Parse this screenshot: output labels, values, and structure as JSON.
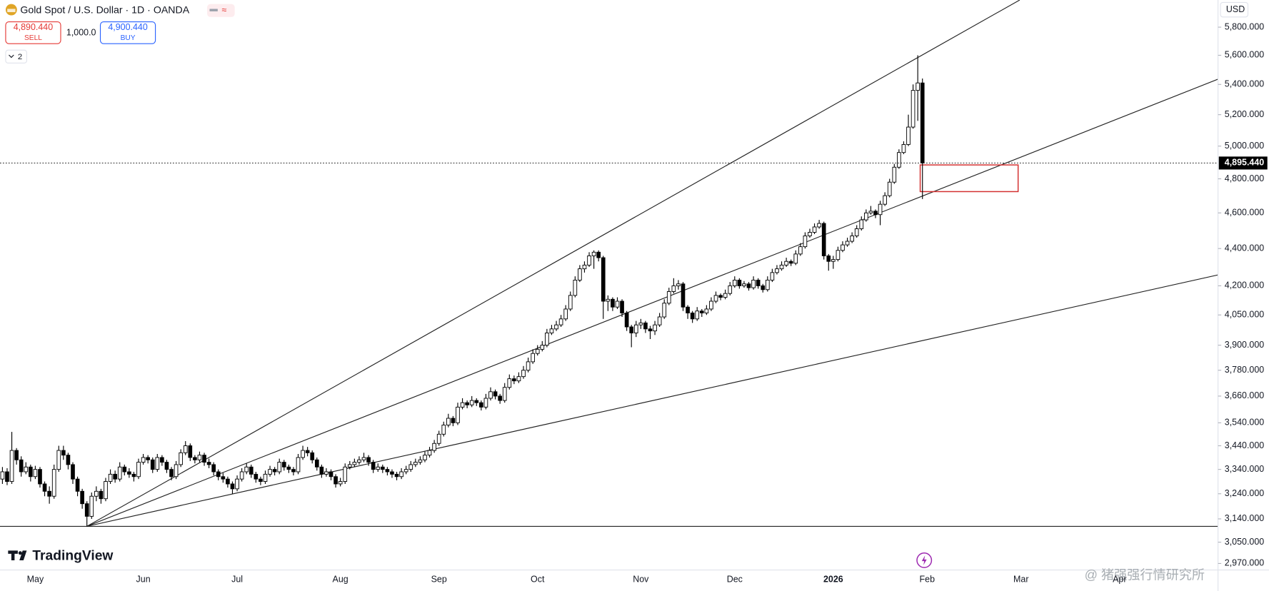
{
  "chart_data": {
    "type": "candlestick",
    "title": "Gold Spot / U.S. Dollar · 1D · OANDA",
    "sell_price": "4,890.440",
    "sell_label": "SELL",
    "quantity": "1,000.0",
    "buy_price": "4,900.440",
    "buy_label": "BUY",
    "indicator_count": "2",
    "currency": "USD",
    "brand": "TradingView",
    "watermark": "@ 猪强强行情研究所",
    "last_label": "4,895.440",
    "log_scale": true,
    "up_color": "#ffffff",
    "down_color": "#000000",
    "ylim": [
      2946,
      6000
    ],
    "yticks": [
      {
        "value": 5800,
        "label": "5,800.000"
      },
      {
        "value": 5600,
        "label": "5,600.000"
      },
      {
        "value": 5400,
        "label": "5,400.000"
      },
      {
        "value": 5200,
        "label": "5,200.000"
      },
      {
        "value": 5000,
        "label": "5,000.000"
      },
      {
        "value": 4800,
        "label": "4,800.000"
      },
      {
        "value": 4600,
        "label": "4,600.000"
      },
      {
        "value": 4400,
        "label": "4,400.000"
      },
      {
        "value": 4200,
        "label": "4,200.000"
      },
      {
        "value": 4050,
        "label": "4,050.000"
      },
      {
        "value": 3900,
        "label": "3,900.000"
      },
      {
        "value": 3780,
        "label": "3,780.000"
      },
      {
        "value": 3660,
        "label": "3,660.000"
      },
      {
        "value": 3540,
        "label": "3,540.000"
      },
      {
        "value": 3440,
        "label": "3,440.000"
      },
      {
        "value": 3340,
        "label": "3,340.000"
      },
      {
        "value": 3240,
        "label": "3,240.000"
      },
      {
        "value": 3140,
        "label": "3,140.000"
      },
      {
        "value": 3050,
        "label": "3,050.000"
      },
      {
        "value": 2970,
        "label": "2,970.000"
      }
    ],
    "categories": [
      null,
      null,
      null,
      null,
      null,
      null,
      null,
      "May",
      null,
      null,
      null,
      null,
      null,
      null,
      null,
      null,
      null,
      null,
      null,
      null,
      null,
      null,
      null,
      null,
      null,
      null,
      null,
      null,
      null,
      null,
      "Jun",
      null,
      null,
      null,
      null,
      null,
      null,
      null,
      null,
      null,
      null,
      null,
      null,
      null,
      null,
      null,
      null,
      null,
      null,
      null,
      "Jul",
      null,
      null,
      null,
      null,
      null,
      null,
      null,
      null,
      null,
      null,
      null,
      null,
      null,
      null,
      null,
      null,
      null,
      null,
      null,
      null,
      null,
      "Aug",
      null,
      null,
      null,
      null,
      null,
      null,
      null,
      null,
      null,
      null,
      null,
      null,
      null,
      null,
      null,
      null,
      null,
      null,
      null,
      null,
      "Sep",
      null,
      null,
      null,
      null,
      null,
      null,
      null,
      null,
      null,
      null,
      null,
      null,
      null,
      null,
      null,
      null,
      null,
      null,
      null,
      null,
      "Oct",
      null,
      null,
      null,
      null,
      null,
      null,
      null,
      null,
      null,
      null,
      null,
      null,
      null,
      null,
      null,
      null,
      null,
      null,
      null,
      null,
      null,
      "Nov",
      null,
      null,
      null,
      null,
      null,
      null,
      null,
      null,
      null,
      null,
      null,
      null,
      null,
      null,
      null,
      null,
      null,
      null,
      null,
      "Dec",
      null,
      null,
      null,
      null,
      null,
      null,
      null,
      null,
      null,
      null,
      null,
      null,
      null,
      null,
      null,
      null,
      null,
      null,
      null,
      null,
      "2026",
      null,
      null,
      null,
      null,
      null,
      null,
      null,
      null,
      null,
      null,
      null,
      null,
      null,
      null,
      null,
      null,
      null,
      null,
      null,
      "Feb",
      null,
      null,
      null,
      null,
      null,
      null,
      null,
      null,
      null,
      null,
      null,
      null,
      null,
      null,
      null,
      null,
      null,
      null,
      null,
      "Mar",
      null,
      null,
      null,
      null,
      null,
      null,
      null,
      null,
      null,
      null,
      null,
      null,
      null,
      null,
      null,
      null,
      null,
      null,
      null,
      null,
      "Apr",
      null,
      null
    ],
    "ohlc": [
      [
        3300,
        3350,
        3280,
        3330
      ],
      [
        3330,
        3345,
        3275,
        3290
      ],
      [
        3290,
        3500,
        3280,
        3420
      ],
      [
        3420,
        3430,
        3360,
        3380
      ],
      [
        3380,
        3395,
        3310,
        3330
      ],
      [
        3330,
        3370,
        3320,
        3350
      ],
      [
        3350,
        3360,
        3290,
        3310
      ],
      [
        3310,
        3355,
        3300,
        3340
      ],
      [
        3340,
        3350,
        3265,
        3280
      ],
      [
        3280,
        3290,
        3230,
        3250
      ],
      [
        3250,
        3270,
        3200,
        3230
      ],
      [
        3230,
        3360,
        3220,
        3340
      ],
      [
        3340,
        3440,
        3330,
        3420
      ],
      [
        3420,
        3440,
        3380,
        3400
      ],
      [
        3400,
        3410,
        3340,
        3360
      ],
      [
        3360,
        3370,
        3280,
        3300
      ],
      [
        3300,
        3310,
        3230,
        3250
      ],
      [
        3250,
        3260,
        3180,
        3200
      ],
      [
        3200,
        3210,
        3110,
        3150
      ],
      [
        3150,
        3245,
        3140,
        3230
      ],
      [
        3230,
        3270,
        3210,
        3250
      ],
      [
        3250,
        3260,
        3200,
        3220
      ],
      [
        3220,
        3305,
        3210,
        3290
      ],
      [
        3290,
        3340,
        3280,
        3320
      ],
      [
        3320,
        3335,
        3285,
        3300
      ],
      [
        3300,
        3370,
        3290,
        3350
      ],
      [
        3350,
        3360,
        3315,
        3330
      ],
      [
        3330,
        3345,
        3305,
        3320
      ],
      [
        3320,
        3330,
        3290,
        3310
      ],
      [
        3310,
        3385,
        3300,
        3370
      ],
      [
        3370,
        3405,
        3360,
        3390
      ],
      [
        3390,
        3400,
        3365,
        3380
      ],
      [
        3380,
        3390,
        3325,
        3340
      ],
      [
        3340,
        3405,
        3330,
        3390
      ],
      [
        3390,
        3400,
        3355,
        3370
      ],
      [
        3370,
        3380,
        3325,
        3340
      ],
      [
        3340,
        3350,
        3295,
        3310
      ],
      [
        3310,
        3375,
        3300,
        3360
      ],
      [
        3360,
        3425,
        3350,
        3410
      ],
      [
        3410,
        3460,
        3400,
        3440
      ],
      [
        3440,
        3450,
        3375,
        3390
      ],
      [
        3390,
        3400,
        3365,
        3380
      ],
      [
        3380,
        3415,
        3370,
        3400
      ],
      [
        3400,
        3410,
        3355,
        3370
      ],
      [
        3370,
        3385,
        3345,
        3360
      ],
      [
        3360,
        3370,
        3315,
        3330
      ],
      [
        3330,
        3340,
        3295,
        3310
      ],
      [
        3310,
        3325,
        3285,
        3300
      ],
      [
        3300,
        3310,
        3265,
        3280
      ],
      [
        3280,
        3290,
        3240,
        3260
      ],
      [
        3260,
        3315,
        3250,
        3300
      ],
      [
        3300,
        3345,
        3290,
        3330
      ],
      [
        3330,
        3365,
        3320,
        3350
      ],
      [
        3350,
        3360,
        3305,
        3320
      ],
      [
        3320,
        3330,
        3285,
        3300
      ],
      [
        3300,
        3310,
        3275,
        3290
      ],
      [
        3290,
        3335,
        3280,
        3320
      ],
      [
        3320,
        3355,
        3310,
        3340
      ],
      [
        3340,
        3350,
        3315,
        3330
      ],
      [
        3330,
        3385,
        3320,
        3370
      ],
      [
        3370,
        3380,
        3335,
        3350
      ],
      [
        3350,
        3360,
        3325,
        3340
      ],
      [
        3340,
        3350,
        3315,
        3330
      ],
      [
        3330,
        3405,
        3320,
        3390
      ],
      [
        3390,
        3440,
        3380,
        3420
      ],
      [
        3420,
        3435,
        3395,
        3410
      ],
      [
        3410,
        3420,
        3365,
        3380
      ],
      [
        3380,
        3390,
        3335,
        3350
      ],
      [
        3350,
        3360,
        3305,
        3320
      ],
      [
        3320,
        3345,
        3310,
        3330
      ],
      [
        3330,
        3340,
        3295,
        3310
      ],
      [
        3310,
        3320,
        3265,
        3280
      ],
      [
        3280,
        3305,
        3270,
        3290
      ],
      [
        3290,
        3365,
        3280,
        3350
      ],
      [
        3350,
        3375,
        3340,
        3360
      ],
      [
        3360,
        3385,
        3350,
        3370
      ],
      [
        3370,
        3395,
        3360,
        3380
      ],
      [
        3380,
        3410,
        3370,
        3390
      ],
      [
        3390,
        3400,
        3355,
        3370
      ],
      [
        3370,
        3380,
        3325,
        3340
      ],
      [
        3340,
        3365,
        3330,
        3350
      ],
      [
        3350,
        3360,
        3325,
        3340
      ],
      [
        3340,
        3350,
        3315,
        3330
      ],
      [
        3330,
        3340,
        3305,
        3320
      ],
      [
        3320,
        3330,
        3295,
        3310
      ],
      [
        3310,
        3345,
        3300,
        3330
      ],
      [
        3330,
        3355,
        3320,
        3340
      ],
      [
        3340,
        3375,
        3330,
        3360
      ],
      [
        3360,
        3385,
        3350,
        3370
      ],
      [
        3370,
        3395,
        3360,
        3380
      ],
      [
        3380,
        3415,
        3370,
        3400
      ],
      [
        3400,
        3435,
        3390,
        3420
      ],
      [
        3420,
        3465,
        3410,
        3450
      ],
      [
        3450,
        3505,
        3440,
        3490
      ],
      [
        3490,
        3545,
        3480,
        3530
      ],
      [
        3530,
        3580,
        3520,
        3560
      ],
      [
        3560,
        3570,
        3525,
        3540
      ],
      [
        3540,
        3630,
        3530,
        3610
      ],
      [
        3610,
        3650,
        3600,
        3630
      ],
      [
        3630,
        3640,
        3605,
        3620
      ],
      [
        3620,
        3660,
        3610,
        3640
      ],
      [
        3640,
        3650,
        3615,
        3630
      ],
      [
        3630,
        3640,
        3595,
        3610
      ],
      [
        3610,
        3670,
        3600,
        3650
      ],
      [
        3650,
        3700,
        3640,
        3680
      ],
      [
        3680,
        3690,
        3645,
        3660
      ],
      [
        3660,
        3670,
        3625,
        3640
      ],
      [
        3640,
        3720,
        3630,
        3700
      ],
      [
        3700,
        3760,
        3690,
        3740
      ],
      [
        3740,
        3755,
        3715,
        3730
      ],
      [
        3730,
        3770,
        3720,
        3750
      ],
      [
        3750,
        3800,
        3740,
        3780
      ],
      [
        3780,
        3840,
        3770,
        3820
      ],
      [
        3820,
        3880,
        3810,
        3860
      ],
      [
        3860,
        3900,
        3850,
        3880
      ],
      [
        3880,
        3920,
        3870,
        3900
      ],
      [
        3900,
        3980,
        3890,
        3960
      ],
      [
        3960,
        4000,
        3950,
        3980
      ],
      [
        3980,
        4020,
        3970,
        4000
      ],
      [
        4000,
        4050,
        3990,
        4030
      ],
      [
        4030,
        4100,
        4020,
        4080
      ],
      [
        4080,
        4170,
        4070,
        4150
      ],
      [
        4150,
        4250,
        4140,
        4230
      ],
      [
        4230,
        4310,
        4220,
        4290
      ],
      [
        4290,
        4330,
        4270,
        4310
      ],
      [
        4310,
        4380,
        4300,
        4360
      ],
      [
        4360,
        4390,
        4290,
        4380
      ],
      [
        4380,
        4390,
        4330,
        4350
      ],
      [
        4350,
        4360,
        4030,
        4120
      ],
      [
        4120,
        4150,
        4070,
        4130
      ],
      [
        4130,
        4140,
        4070,
        4090
      ],
      [
        4090,
        4140,
        4080,
        4120
      ],
      [
        4120,
        4130,
        4040,
        4060
      ],
      [
        4060,
        4070,
        3970,
        3990
      ],
      [
        3990,
        4000,
        3890,
        3960
      ],
      [
        3960,
        4020,
        3940,
        4000
      ],
      [
        4000,
        4030,
        3980,
        4010
      ],
      [
        4010,
        4020,
        3960,
        3980
      ],
      [
        3980,
        3995,
        3930,
        3970
      ],
      [
        3970,
        4020,
        3950,
        4000
      ],
      [
        4000,
        4060,
        3990,
        4040
      ],
      [
        4040,
        4130,
        4030,
        4110
      ],
      [
        4110,
        4190,
        4100,
        4170
      ],
      [
        4170,
        4240,
        4160,
        4200
      ],
      [
        4200,
        4230,
        4180,
        4210
      ],
      [
        4210,
        4220,
        4070,
        4090
      ],
      [
        4090,
        4100,
        4030,
        4060
      ],
      [
        4060,
        4070,
        4010,
        4030
      ],
      [
        4030,
        4090,
        4020,
        4070
      ],
      [
        4070,
        4080,
        4040,
        4060
      ],
      [
        4060,
        4100,
        4050,
        4080
      ],
      [
        4080,
        4140,
        4070,
        4120
      ],
      [
        4120,
        4170,
        4110,
        4150
      ],
      [
        4150,
        4160,
        4125,
        4140
      ],
      [
        4140,
        4180,
        4130,
        4160
      ],
      [
        4160,
        4220,
        4150,
        4200
      ],
      [
        4200,
        4250,
        4190,
        4230
      ],
      [
        4230,
        4240,
        4185,
        4200
      ],
      [
        4200,
        4225,
        4190,
        4210
      ],
      [
        4210,
        4220,
        4175,
        4190
      ],
      [
        4190,
        4250,
        4180,
        4230
      ],
      [
        4230,
        4240,
        4185,
        4200
      ],
      [
        4200,
        4210,
        4165,
        4180
      ],
      [
        4180,
        4250,
        4170,
        4230
      ],
      [
        4230,
        4290,
        4220,
        4270
      ],
      [
        4270,
        4310,
        4260,
        4290
      ],
      [
        4290,
        4330,
        4280,
        4310
      ],
      [
        4310,
        4350,
        4300,
        4330
      ],
      [
        4330,
        4340,
        4305,
        4320
      ],
      [
        4320,
        4390,
        4310,
        4370
      ],
      [
        4370,
        4430,
        4360,
        4410
      ],
      [
        4410,
        4490,
        4400,
        4470
      ],
      [
        4470,
        4510,
        4460,
        4490
      ],
      [
        4490,
        4540,
        4480,
        4520
      ],
      [
        4520,
        4560,
        4510,
        4540
      ],
      [
        4540,
        4550,
        4340,
        4360
      ],
      [
        4360,
        4370,
        4280,
        4330
      ],
      [
        4330,
        4360,
        4290,
        4340
      ],
      [
        4340,
        4410,
        4330,
        4390
      ],
      [
        4390,
        4440,
        4380,
        4420
      ],
      [
        4420,
        4460,
        4410,
        4440
      ],
      [
        4440,
        4490,
        4430,
        4470
      ],
      [
        4470,
        4530,
        4460,
        4510
      ],
      [
        4510,
        4580,
        4500,
        4560
      ],
      [
        4560,
        4620,
        4550,
        4600
      ],
      [
        4600,
        4640,
        4590,
        4610
      ],
      [
        4610,
        4620,
        4570,
        4590
      ],
      [
        4590,
        4670,
        4530,
        4650
      ],
      [
        4650,
        4720,
        4640,
        4700
      ],
      [
        4700,
        4800,
        4690,
        4780
      ],
      [
        4780,
        4890,
        4770,
        4870
      ],
      [
        4870,
        4980,
        4860,
        4960
      ],
      [
        4960,
        5030,
        4950,
        5010
      ],
      [
        5010,
        5200,
        5000,
        5120
      ],
      [
        5120,
        5400,
        5110,
        5360
      ],
      [
        5360,
        5600,
        5160,
        5410
      ],
      [
        5410,
        5440,
        4680,
        4895.44
      ],
      null,
      null,
      null,
      null,
      null,
      null,
      null,
      null,
      null,
      null,
      null,
      null,
      null,
      null,
      null,
      null,
      null,
      null,
      null,
      null,
      null,
      null,
      null,
      null,
      null,
      null,
      null,
      null,
      null,
      null,
      null,
      null,
      null,
      null,
      null,
      null,
      null,
      null,
      null,
      null,
      null,
      null,
      null,
      null
    ]
  }
}
